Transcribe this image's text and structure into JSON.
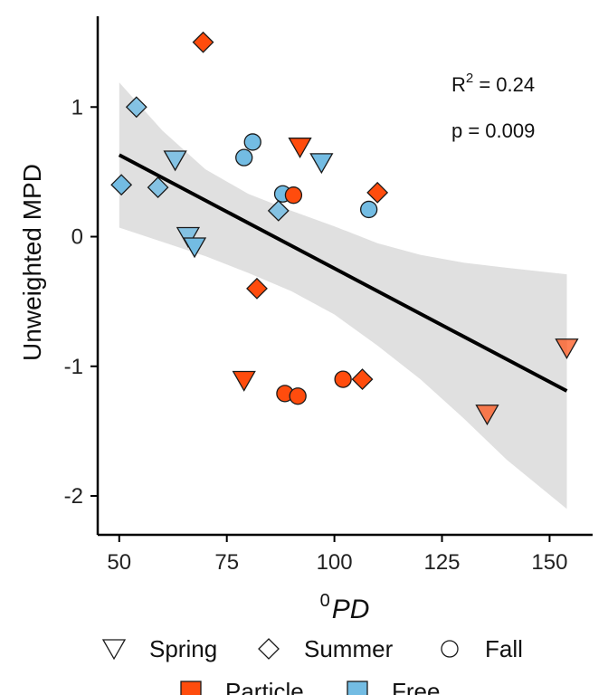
{
  "chart_data": {
    "type": "scatter",
    "xlabel_sup": "0",
    "xlabel": "PD",
    "ylabel": "Unweighted MPD",
    "xlim": [
      45,
      160
    ],
    "ylim": [
      -2.3,
      1.7
    ],
    "x_ticks": [
      50,
      75,
      100,
      125,
      150
    ],
    "y_ticks": [
      -2,
      -1,
      0,
      1
    ],
    "y_tick_labels": [
      "-2",
      "-1",
      "0",
      "1"
    ],
    "stats": {
      "r2_label": "R",
      "r2_sup": "2",
      "r2_value": " = 0.24",
      "p_label": "p = 0.009"
    },
    "regression": {
      "x_range": [
        50,
        154
      ],
      "fit": [
        0.63,
        -1.19
      ],
      "band_upper": [
        [
          50,
          1.19
        ],
        [
          60,
          0.82
        ],
        [
          70,
          0.52
        ],
        [
          80,
          0.33
        ],
        [
          90,
          0.2
        ],
        [
          100,
          0.08
        ],
        [
          110,
          -0.05
        ],
        [
          120,
          -0.14
        ],
        [
          130,
          -0.2
        ],
        [
          140,
          -0.24
        ],
        [
          154,
          -0.29
        ]
      ],
      "band_lower": [
        [
          50,
          0.07
        ],
        [
          60,
          -0.04
        ],
        [
          70,
          -0.15
        ],
        [
          80,
          -0.28
        ],
        [
          90,
          -0.42
        ],
        [
          100,
          -0.6
        ],
        [
          110,
          -0.84
        ],
        [
          120,
          -1.1
        ],
        [
          130,
          -1.4
        ],
        [
          140,
          -1.72
        ],
        [
          154,
          -2.1
        ]
      ]
    },
    "colors": {
      "particle": "#FF4C0D",
      "free": "#73BCE3",
      "band": "#E0E0E0",
      "line": "#000000"
    },
    "points": [
      {
        "x": 69.5,
        "y": 1.5,
        "season": "Summer",
        "fraction": "Particle",
        "alpha": 1
      },
      {
        "x": 54,
        "y": 1.0,
        "season": "Summer",
        "fraction": "Free",
        "alpha": 0.85
      },
      {
        "x": 81,
        "y": 0.73,
        "season": "Fall",
        "fraction": "Free",
        "alpha": 1
      },
      {
        "x": 79,
        "y": 0.61,
        "season": "Fall",
        "fraction": "Free",
        "alpha": 1
      },
      {
        "x": 92,
        "y": 0.69,
        "season": "Spring",
        "fraction": "Particle",
        "alpha": 1
      },
      {
        "x": 63,
        "y": 0.59,
        "season": "Spring",
        "fraction": "Free",
        "alpha": 0.85
      },
      {
        "x": 97,
        "y": 0.57,
        "season": "Spring",
        "fraction": "Free",
        "alpha": 1
      },
      {
        "x": 50.5,
        "y": 0.4,
        "season": "Summer",
        "fraction": "Free",
        "alpha": 1
      },
      {
        "x": 59,
        "y": 0.38,
        "season": "Summer",
        "fraction": "Free",
        "alpha": 0.85
      },
      {
        "x": 88,
        "y": 0.33,
        "season": "Fall",
        "fraction": "Free",
        "alpha": 1
      },
      {
        "x": 90.5,
        "y": 0.32,
        "season": "Fall",
        "fraction": "Particle",
        "alpha": 1
      },
      {
        "x": 110,
        "y": 0.34,
        "season": "Summer",
        "fraction": "Particle",
        "alpha": 1
      },
      {
        "x": 108,
        "y": 0.21,
        "season": "Fall",
        "fraction": "Free",
        "alpha": 1
      },
      {
        "x": 87,
        "y": 0.2,
        "season": "Summer",
        "fraction": "Free",
        "alpha": 0.85
      },
      {
        "x": 66,
        "y": 0.0,
        "season": "Spring",
        "fraction": "Free",
        "alpha": 0.85
      },
      {
        "x": 67.5,
        "y": -0.08,
        "season": "Spring",
        "fraction": "Free",
        "alpha": 1
      },
      {
        "x": 82,
        "y": -0.4,
        "season": "Summer",
        "fraction": "Particle",
        "alpha": 1
      },
      {
        "x": 79,
        "y": -1.11,
        "season": "Spring",
        "fraction": "Particle",
        "alpha": 1
      },
      {
        "x": 88.5,
        "y": -1.21,
        "season": "Fall",
        "fraction": "Particle",
        "alpha": 1
      },
      {
        "x": 91.5,
        "y": -1.23,
        "season": "Fall",
        "fraction": "Particle",
        "alpha": 1
      },
      {
        "x": 102,
        "y": -1.1,
        "season": "Fall",
        "fraction": "Particle",
        "alpha": 1
      },
      {
        "x": 106.5,
        "y": -1.1,
        "season": "Summer",
        "fraction": "Particle",
        "alpha": 1
      },
      {
        "x": 135.5,
        "y": -1.37,
        "season": "Spring",
        "fraction": "Particle",
        "alpha": 0.7
      },
      {
        "x": 154,
        "y": -0.86,
        "season": "Spring",
        "fraction": "Particle",
        "alpha": 0.7
      }
    ],
    "legend": {
      "shapes": [
        {
          "label": "Spring",
          "season": "Spring"
        },
        {
          "label": "Summer",
          "season": "Summer"
        },
        {
          "label": "Fall",
          "season": "Fall"
        }
      ],
      "fills": [
        {
          "label": "Particle",
          "fraction": "Particle"
        },
        {
          "label": "Free",
          "fraction": "Free"
        }
      ]
    }
  }
}
